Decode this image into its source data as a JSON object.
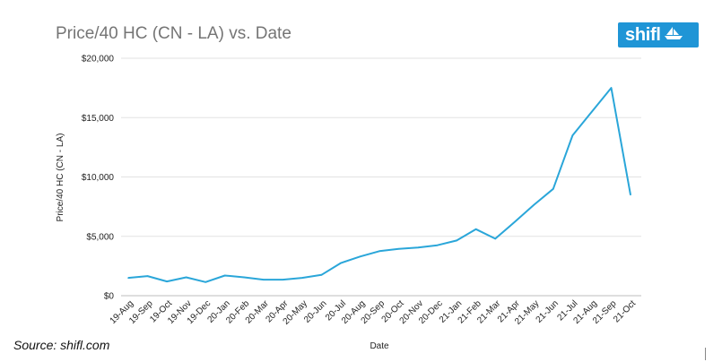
{
  "header": {
    "title": "Price/40 HC (CN - LA) vs. Date"
  },
  "logo": {
    "text": "shifl",
    "icon": "ship-icon",
    "color": "#1f95d6"
  },
  "source": "Source: shifl.com",
  "chart_data": {
    "type": "line",
    "title": "Price/40 HC (CN - LA) vs. Date",
    "xlabel": "Date",
    "ylabel": "Price/40 HC (CN - LA)",
    "ylim": [
      0,
      20000
    ],
    "yticks": [
      {
        "value": 0,
        "label": "$0"
      },
      {
        "value": 5000,
        "label": "$5,000"
      },
      {
        "value": 10000,
        "label": "$10,000"
      },
      {
        "value": 15000,
        "label": "$15,000"
      },
      {
        "value": 20000,
        "label": "$20,000"
      }
    ],
    "grid": true,
    "line_color": "#2aa6d9",
    "categories": [
      "19-Aug",
      "19-Sep",
      "19-Oct",
      "19-Nov",
      "19-Dec",
      "20-Jan",
      "20-Feb",
      "20-Mar",
      "20-Apr",
      "20-May",
      "20-Jun",
      "20-Jul",
      "20-Aug",
      "20-Sep",
      "20-Oct",
      "20-Nov",
      "20-Dec",
      "21-Jan",
      "21-Feb",
      "21-Mar",
      "21-Apr",
      "21-May",
      "21-Jun",
      "21-Jul",
      "21-Aug",
      "21-Sep",
      "21-Oct"
    ],
    "series": [
      {
        "values": [
          1500,
          1650,
          1200,
          1550,
          1150,
          1700,
          1550,
          1350,
          1350,
          1500,
          1750,
          2750,
          3300,
          3750,
          3950,
          4050,
          4250,
          4650,
          5600,
          4800,
          6200,
          7650,
          9000,
          13500,
          15500,
          17500,
          8500
        ]
      }
    ]
  }
}
